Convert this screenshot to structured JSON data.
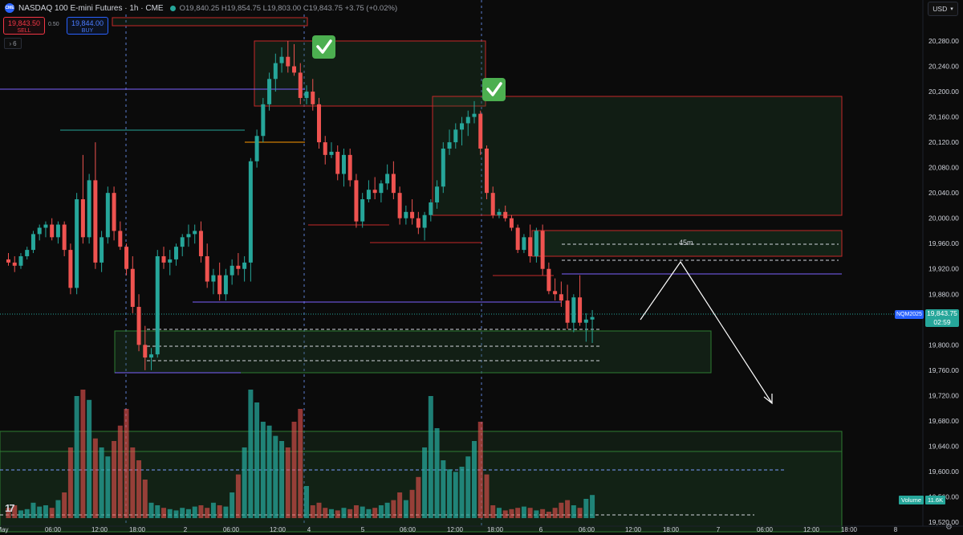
{
  "header": {
    "symbol_icon": "CME",
    "title": "NASDAQ 100 E-mini Futures · 1h · CME",
    "ohlc_text": "O19,840.25  H19,854.75  L19,803.00  C19,843.75  +3.75 (+0.02%)"
  },
  "trade": {
    "sell_price": "19,843.50",
    "sell_label": "SELL",
    "spread": "0.50",
    "buy_price": "19,844.00",
    "buy_label": "BUY"
  },
  "indicators_toggle": {
    "icon": "chevron-right-icon",
    "count": "6"
  },
  "currency": {
    "label": "USD",
    "icon": "chevron-down-icon"
  },
  "price_scale": [
    "20,280.00",
    "20,240.00",
    "20,200.00",
    "20,160.00",
    "20,120.00",
    "20,080.00",
    "20,040.00",
    "20,000.00",
    "19,960.00",
    "19,920.00",
    "19,880.00",
    "19,840.00",
    "19,800.00",
    "19,760.00",
    "19,720.00",
    "19,680.00",
    "19,640.00",
    "19,600.00",
    "19,560.00",
    "19,520.00"
  ],
  "time_axis": [
    {
      "label": "May",
      "x": 3
    },
    {
      "label": "06:00",
      "x": 66
    },
    {
      "label": "12:00",
      "x": 124
    },
    {
      "label": "18:00",
      "x": 171
    },
    {
      "label": "2",
      "x": 231
    },
    {
      "label": "06:00",
      "x": 288
    },
    {
      "label": "12:00",
      "x": 346
    },
    {
      "label": "4",
      "x": 385
    },
    {
      "label": "5",
      "x": 452
    },
    {
      "label": "06:00",
      "x": 508
    },
    {
      "label": "12:00",
      "x": 567
    },
    {
      "label": "18:00",
      "x": 617
    },
    {
      "label": "6",
      "x": 674
    },
    {
      "label": "06:00",
      "x": 731
    },
    {
      "label": "12:00",
      "x": 789
    },
    {
      "label": "18:00",
      "x": 836
    },
    {
      "label": "7",
      "x": 895
    },
    {
      "label": "06:00",
      "x": 953
    },
    {
      "label": "12:00",
      "x": 1011
    },
    {
      "label": "18:00",
      "x": 1058
    },
    {
      "label": "8",
      "x": 1116
    }
  ],
  "last_price": {
    "symbol": "NQM2025",
    "price": "19,843.75",
    "countdown": "02:59"
  },
  "volume_label": {
    "name": "Volume",
    "value": "11.6K"
  },
  "annotation_label": "45m",
  "checkmarks": [
    "check-icon",
    "check-icon"
  ],
  "colors": {
    "up": "#26a69a",
    "down": "#ef5350",
    "zone_border": "#c62828",
    "demand_border": "#2e7d32",
    "level_line": "#7b61ff"
  },
  "chart_data": {
    "type": "candlestick",
    "interval": "1h",
    "y_range": [
      19510,
      20300
    ],
    "candles": [
      [
        19935,
        19945,
        19925,
        19930
      ],
      [
        19930,
        19940,
        19915,
        19925
      ],
      [
        19925,
        19945,
        19920,
        19940
      ],
      [
        19940,
        19955,
        19935,
        19950
      ],
      [
        19950,
        19980,
        19945,
        19975
      ],
      [
        19975,
        19990,
        19965,
        19985
      ],
      [
        19985,
        19995,
        19970,
        19990
      ],
      [
        19990,
        20000,
        19965,
        19970
      ],
      [
        19970,
        19995,
        19960,
        19990
      ],
      [
        19990,
        19995,
        19940,
        19950
      ],
      [
        19950,
        19960,
        19880,
        19890
      ],
      [
        19890,
        20040,
        19880,
        20030
      ],
      [
        20030,
        20100,
        19960,
        19970
      ],
      [
        19970,
        20070,
        19960,
        20060
      ],
      [
        20060,
        20120,
        19920,
        19930
      ],
      [
        19930,
        19980,
        19915,
        19970
      ],
      [
        19970,
        20050,
        19960,
        20040
      ],
      [
        20040,
        20050,
        19965,
        19980
      ],
      [
        19980,
        19995,
        19950,
        19955
      ],
      [
        19955,
        19960,
        19910,
        19920
      ],
      [
        19920,
        19940,
        19850,
        19860
      ],
      [
        19860,
        19880,
        19790,
        19800
      ],
      [
        19800,
        19830,
        19760,
        19780
      ],
      [
        19780,
        19795,
        19760,
        19785
      ],
      [
        19785,
        19950,
        19780,
        19940
      ],
      [
        19940,
        19955,
        19920,
        19930
      ],
      [
        19930,
        19950,
        19910,
        19935
      ],
      [
        19935,
        19960,
        19925,
        19955
      ],
      [
        19955,
        19975,
        19940,
        19970
      ],
      [
        19970,
        19990,
        19955,
        19975
      ],
      [
        19975,
        19990,
        19960,
        19980
      ],
      [
        19980,
        19995,
        19930,
        19940
      ],
      [
        19940,
        19960,
        19890,
        19900
      ],
      [
        19900,
        19920,
        19880,
        19910
      ],
      [
        19910,
        19930,
        19870,
        19880
      ],
      [
        19880,
        19920,
        19870,
        19910
      ],
      [
        19910,
        19935,
        19895,
        19925
      ],
      [
        19925,
        19945,
        19910,
        19920
      ],
      [
        19920,
        19940,
        19900,
        19930
      ],
      [
        19930,
        20095,
        19900,
        20090
      ],
      [
        20090,
        20140,
        20080,
        20130
      ],
      [
        20130,
        20190,
        20120,
        20180
      ],
      [
        20180,
        20230,
        20170,
        20220
      ],
      [
        20220,
        20260,
        20200,
        20245
      ],
      [
        20245,
        20270,
        20230,
        20255
      ],
      [
        20255,
        20280,
        20230,
        20240
      ],
      [
        20240,
        20275,
        20225,
        20230
      ],
      [
        20230,
        20245,
        20180,
        20190
      ],
      [
        20190,
        20210,
        20180,
        20200
      ],
      [
        20200,
        20220,
        20170,
        20180
      ],
      [
        20180,
        20190,
        20110,
        20120
      ],
      [
        20120,
        20130,
        20085,
        20100
      ],
      [
        20100,
        20120,
        20095,
        20105
      ],
      [
        20105,
        20115,
        20060,
        20070
      ],
      [
        20070,
        20110,
        20050,
        20100
      ],
      [
        20100,
        20110,
        20050,
        20060
      ],
      [
        20060,
        20070,
        19985,
        19995
      ],
      [
        19995,
        20040,
        19985,
        20030
      ],
      [
        20030,
        20060,
        20025,
        20045
      ],
      [
        20045,
        20065,
        20030,
        20040
      ],
      [
        20040,
        20060,
        20025,
        20055
      ],
      [
        20055,
        20085,
        20045,
        20070
      ],
      [
        20070,
        20090,
        20030,
        20040
      ],
      [
        20040,
        20050,
        19990,
        20000
      ],
      [
        20000,
        20020,
        19990,
        20010
      ],
      [
        20010,
        20030,
        19990,
        20000
      ],
      [
        20000,
        20010,
        19975,
        19985
      ],
      [
        19985,
        20010,
        19965,
        20005
      ],
      [
        20005,
        20030,
        19995,
        20025
      ],
      [
        20025,
        20060,
        20015,
        20050
      ],
      [
        20050,
        20120,
        20040,
        20110
      ],
      [
        20110,
        20140,
        20100,
        20120
      ],
      [
        20120,
        20150,
        20110,
        20140
      ],
      [
        20140,
        20160,
        20115,
        20150
      ],
      [
        20150,
        20170,
        20130,
        20160
      ],
      [
        20160,
        20185,
        20150,
        20165
      ],
      [
        20165,
        20170,
        20100,
        20110
      ],
      [
        20110,
        20115,
        20030,
        20040
      ],
      [
        20040,
        20050,
        20000,
        20005
      ],
      [
        20005,
        20015,
        20000,
        20010
      ],
      [
        20010,
        20020,
        19995,
        20000
      ],
      [
        20000,
        20005,
        19980,
        19985
      ],
      [
        19985,
        19990,
        19945,
        19950
      ],
      [
        19950,
        19975,
        19945,
        19970
      ],
      [
        19970,
        19990,
        19930,
        19940
      ],
      [
        19940,
        19985,
        19930,
        19980
      ],
      [
        19980,
        19990,
        19910,
        19920
      ],
      [
        19920,
        19930,
        19880,
        19885
      ],
      [
        19885,
        19905,
        19870,
        19880
      ],
      [
        19880,
        19900,
        19860,
        19870
      ],
      [
        19870,
        19895,
        19825,
        19835
      ],
      [
        19835,
        19880,
        19820,
        19875
      ],
      [
        19875,
        19910,
        19830,
        19835
      ],
      [
        19835,
        19850,
        19805,
        19840
      ],
      [
        19840,
        19855,
        19803,
        19844
      ]
    ],
    "volume_max": 11.6
  }
}
